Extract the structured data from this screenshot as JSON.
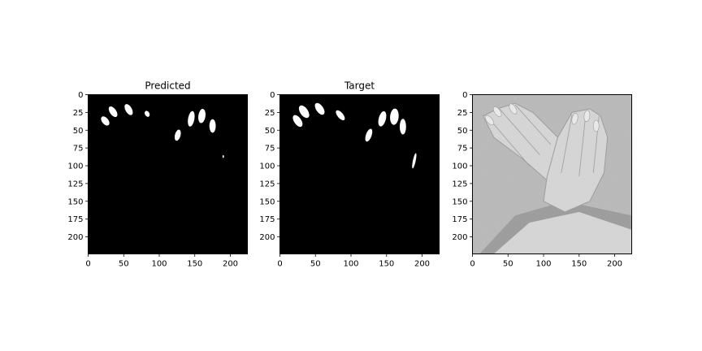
{
  "figure": {
    "background": "#ffffff"
  },
  "chart_data": [
    {
      "type": "heatmap",
      "title": "Predicted",
      "image_kind": "binary-mask",
      "colors": {
        "background": "#000000",
        "foreground": "#ffffff"
      },
      "image_size": [
        224,
        224
      ],
      "xlim": [
        0,
        224
      ],
      "ylim": [
        224,
        0
      ],
      "xticks": [
        0,
        50,
        100,
        150,
        200
      ],
      "yticks": [
        0,
        25,
        50,
        75,
        100,
        125,
        150,
        175,
        200
      ],
      "blobs": [
        {
          "cx": 24,
          "cy": 37,
          "rx": 4.5,
          "ry": 7.5,
          "angle": -40
        },
        {
          "cx": 35,
          "cy": 24,
          "rx": 4.5,
          "ry": 8.5,
          "angle": -35
        },
        {
          "cx": 57,
          "cy": 21,
          "rx": 4.5,
          "ry": 8.5,
          "angle": -30
        },
        {
          "cx": 83,
          "cy": 27,
          "rx": 3.2,
          "ry": 4.5,
          "angle": -30
        },
        {
          "cx": 126,
          "cy": 57,
          "rx": 4,
          "ry": 8,
          "angle": 15
        },
        {
          "cx": 145,
          "cy": 34,
          "rx": 4.5,
          "ry": 11,
          "angle": 10
        },
        {
          "cx": 160,
          "cy": 30,
          "rx": 5,
          "ry": 10,
          "angle": 8
        },
        {
          "cx": 175,
          "cy": 44,
          "rx": 4.5,
          "ry": 9.5,
          "angle": 0
        },
        {
          "cx": 190,
          "cy": 87,
          "rx": 1,
          "ry": 2,
          "angle": 0
        }
      ]
    },
    {
      "type": "heatmap",
      "title": "Target",
      "image_kind": "binary-mask",
      "colors": {
        "background": "#000000",
        "foreground": "#ffffff"
      },
      "image_size": [
        224,
        224
      ],
      "xlim": [
        0,
        224
      ],
      "ylim": [
        224,
        0
      ],
      "xticks": [
        0,
        50,
        100,
        150,
        200
      ],
      "yticks": [
        0,
        25,
        50,
        75,
        100,
        125,
        150,
        175,
        200
      ],
      "blobs": [
        {
          "cx": 25,
          "cy": 37,
          "rx": 5,
          "ry": 9.5,
          "angle": -35
        },
        {
          "cx": 34,
          "cy": 24,
          "rx": 5.5,
          "ry": 10,
          "angle": -35
        },
        {
          "cx": 56,
          "cy": 20,
          "rx": 5,
          "ry": 9.5,
          "angle": -35
        },
        {
          "cx": 85,
          "cy": 29,
          "rx": 4,
          "ry": 8.5,
          "angle": -40
        },
        {
          "cx": 125,
          "cy": 57,
          "rx": 4,
          "ry": 9.5,
          "angle": 20
        },
        {
          "cx": 144,
          "cy": 34,
          "rx": 5,
          "ry": 11,
          "angle": 15
        },
        {
          "cx": 161,
          "cy": 31,
          "rx": 6,
          "ry": 11.5,
          "angle": 5
        },
        {
          "cx": 173,
          "cy": 45,
          "rx": 4.5,
          "ry": 11,
          "angle": 0
        },
        {
          "cx": 189,
          "cy": 93,
          "rx": 2,
          "ry": 11,
          "angle": 12
        }
      ]
    },
    {
      "type": "heatmap",
      "title": "",
      "image_kind": "grayscale-photo",
      "colors": {
        "background": "#b9b9b9",
        "skin": "#d7d7d7",
        "skin_shadow": "#9a9a9a",
        "nail": "#ececec"
      },
      "image_size": [
        224,
        224
      ],
      "xlim": [
        0,
        224
      ],
      "ylim": [
        224,
        0
      ],
      "xticks": [
        0,
        50,
        100,
        150,
        200
      ],
      "yticks": [
        0,
        25,
        50,
        75,
        100,
        125,
        150,
        175,
        200
      ]
    }
  ]
}
